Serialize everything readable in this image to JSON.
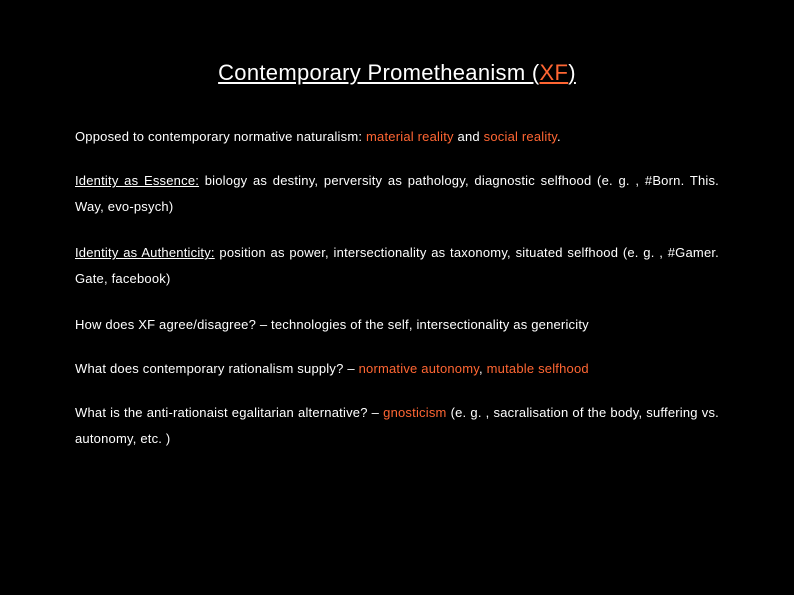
{
  "colors": {
    "background": "#000000",
    "text": "#ffffff",
    "accent": "#ff6633"
  },
  "typography": {
    "title_fontsize": 22,
    "body_fontsize": 13,
    "body_lineheight": 2.0,
    "font_family": "Arial"
  },
  "title": {
    "prefix": "Contemporary Prometheanism (",
    "highlight": "XF",
    "suffix": ")"
  },
  "paragraphs": {
    "p1": {
      "a": "Opposed to contemporary normative naturalism: ",
      "b": "material reality ",
      "c": "and ",
      "d": "social reality",
      "e": "."
    },
    "p2": {
      "a": "Identity as Essence:",
      "b": " biology as destiny, perversity as pathology, diagnostic selfhood (e. g. , #Born. This. Way, evo-psych)"
    },
    "p3": {
      "a": "Identity as Authenticity:",
      "b": " position as power, intersectionality as taxonomy, situated selfhood (e. g. , #Gamer. Gate, facebook)"
    },
    "p4": "How does XF agree/disagree? – technologies of the self, intersectionality as genericity",
    "p5": {
      "a": "What does contemporary rationalism supply? – ",
      "b": "normative autonomy",
      "c": ", ",
      "d": "mutable selfhood"
    },
    "p6": {
      "a": "What is the anti-rationaist egalitarian alternative? – ",
      "b": "gnosticism ",
      "c": "(e. g. , sacralisation of the body, suffering vs. autonomy, etc. )"
    }
  }
}
